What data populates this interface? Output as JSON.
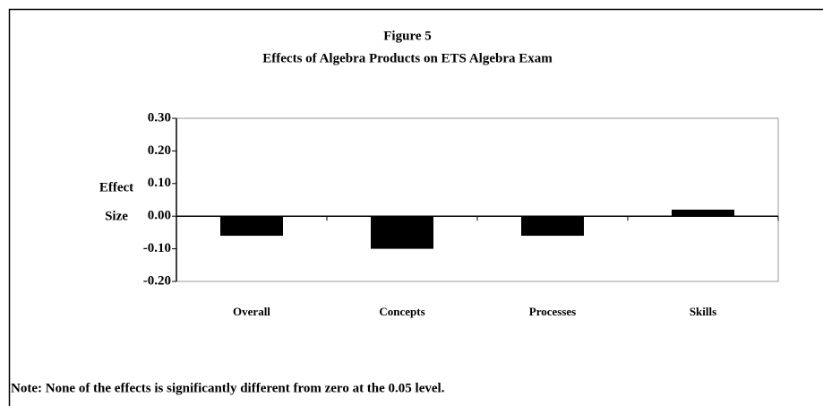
{
  "chart_data": {
    "type": "bar",
    "title": "Figure 5",
    "subtitle": "Effects of Algebra Products on ETS Algebra Exam",
    "ylabel": [
      "Effect",
      "Size"
    ],
    "categories": [
      "Overall",
      "Concepts",
      "Processes",
      "Skills"
    ],
    "values": [
      -0.06,
      -0.1,
      -0.06,
      0.02
    ],
    "color": "#000000",
    "ylim": [
      -0.2,
      0.3
    ],
    "yticks": [
      {
        "value": 0.3,
        "label": "0.30"
      },
      {
        "value": 0.2,
        "label": "0.20"
      },
      {
        "value": 0.1,
        "label": "0.10"
      },
      {
        "value": 0,
        "label": "0.00"
      },
      {
        "value": -0.1,
        "label": "-0.10"
      },
      {
        "value": -0.2,
        "label": "-0.20"
      }
    ],
    "note": "Note:  None of the effects is significantly different from zero at the 0.05 level."
  }
}
